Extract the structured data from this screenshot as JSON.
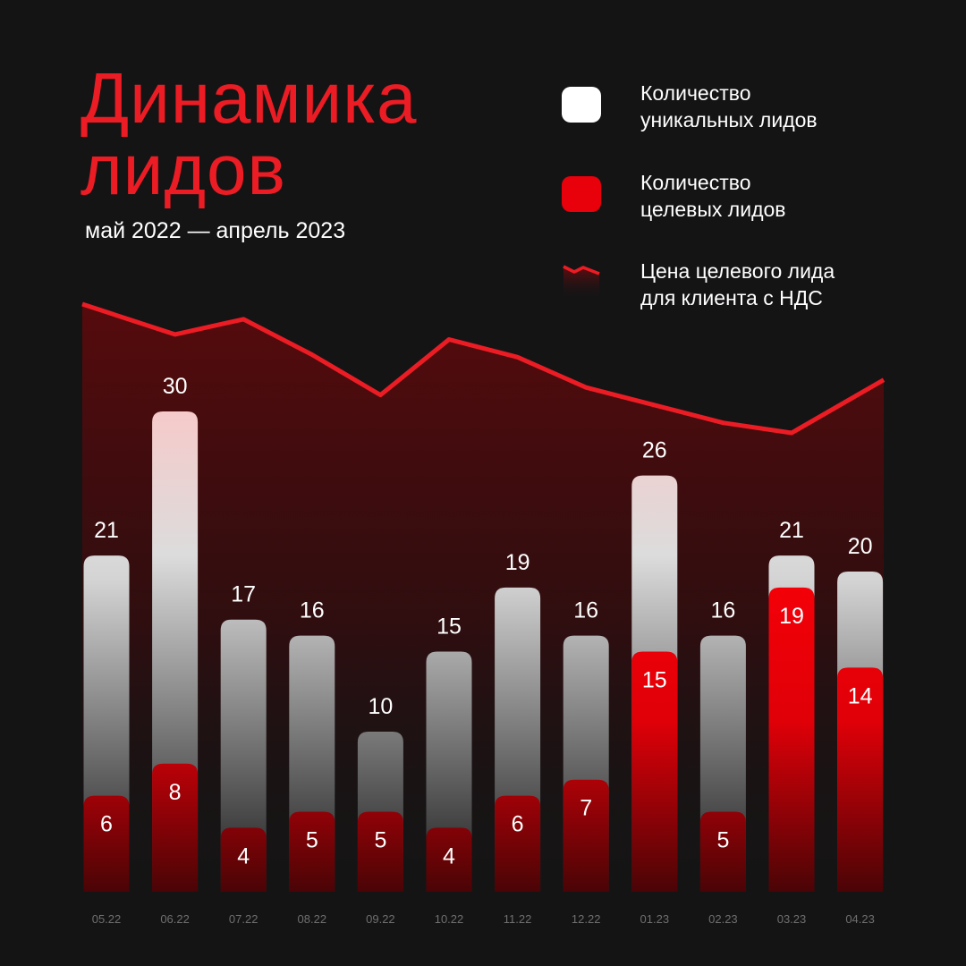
{
  "title_line1": "Динамика",
  "title_line2": "лидов",
  "subtitle": "май 2022 — апрель 2023",
  "legend": [
    {
      "label": "Количество\nуникальных лидов",
      "color": "#ffffff"
    },
    {
      "label": "Количество\nцелевых лидов",
      "color": "#e8000b"
    },
    {
      "label": "Цена целевого лида\nдля клиента с НДС",
      "color": "#ec1c24"
    }
  ],
  "colors": {
    "background": "#151415",
    "accent": "#ec1c24",
    "axis_label": "#6f6f6f"
  },
  "chart_data": {
    "type": "bar",
    "categories": [
      "05.22",
      "06.22",
      "07.22",
      "08.22",
      "09.22",
      "10.22",
      "11.22",
      "12.22",
      "01.23",
      "02.23",
      "03.23",
      "04.23"
    ],
    "series": [
      {
        "name": "Количество уникальных лидов",
        "values": [
          21,
          30,
          17,
          16,
          10,
          15,
          19,
          16,
          26,
          16,
          21,
          20
        ]
      },
      {
        "name": "Количество целевых лидов",
        "values": [
          6,
          8,
          4,
          5,
          5,
          4,
          6,
          7,
          15,
          5,
          19,
          14
        ]
      },
      {
        "name": "Цена целевого лида для клиента с НДС",
        "values": [
          100,
          88,
          94,
          80,
          64,
          86,
          79,
          67,
          60,
          53,
          49,
          70
        ]
      }
    ],
    "ylim": [
      0,
      30
    ]
  }
}
